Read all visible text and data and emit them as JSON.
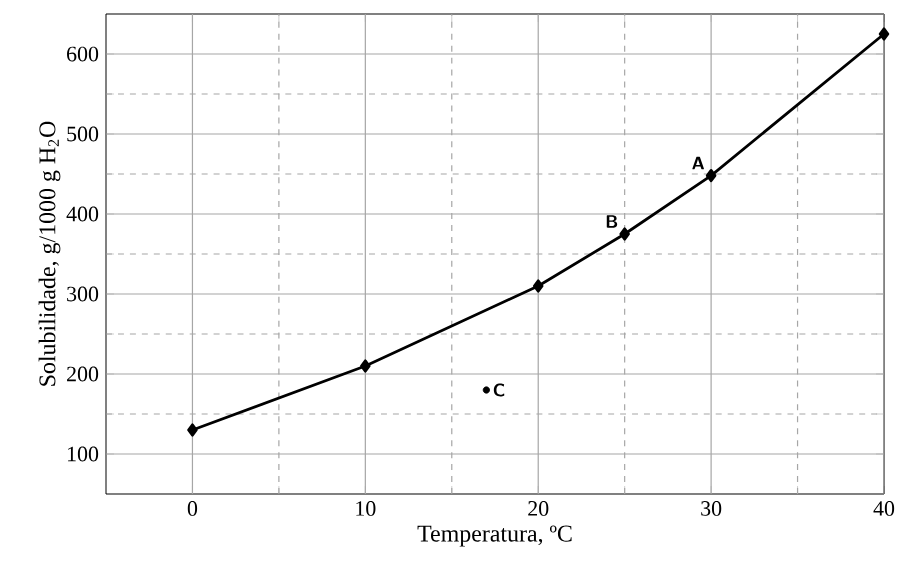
{
  "chart_data": {
    "type": "line",
    "xlabel": "Temperatura, ºC",
    "ylabel": "Solubilidade, g/1000 g H$_{2}$O",
    "x": [
      0,
      10,
      20,
      25,
      30,
      40
    ],
    "series": [
      {
        "color": "#000000",
        "marker": "diamond",
        "line_style": "solid",
        "values": [
          130,
          210,
          310,
          375,
          448,
          625
        ]
      },
      {
        "type": "scatter",
        "color": "#000000",
        "marker": "circle",
        "x": [
          17
        ],
        "values": [
          180
        ]
      }
    ],
    "xlim": [
      -5,
      40
    ],
    "ylim": [
      50,
      650
    ],
    "xticks": [
      0,
      {
        "value": 5,
        "label": null
      },
      10,
      {
        "value": 15,
        "label": null
      },
      20,
      {
        "value": 25,
        "label": null
      },
      30,
      {
        "value": 35,
        "label": null
      },
      40
    ],
    "yticks": [
      100,
      {
        "value": 150,
        "label": null
      },
      200,
      {
        "value": 250,
        "label": null
      },
      300,
      {
        "value": 350,
        "label": null
      },
      400,
      {
        "value": 450,
        "label": null
      },
      500,
      {
        "value": 550,
        "label": null
      },
      600
    ],
    "grid": true,
    "annotations": [
      {
        "text": "A",
        "x": 30,
        "y": 448
      },
      {
        "text": "B",
        "x": 25,
        "y": 375
      },
      {
        "text": "C",
        "x": 17,
        "y": 180
      }
    ]
  }
}
